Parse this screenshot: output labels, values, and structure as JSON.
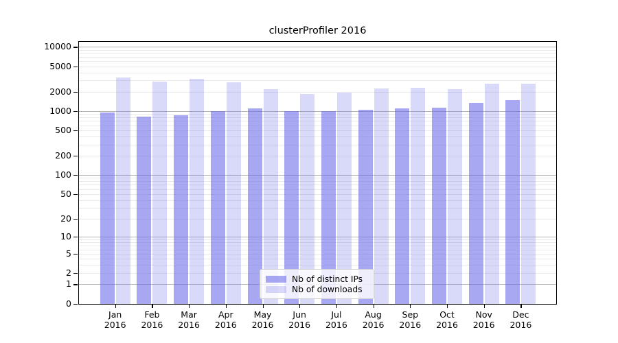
{
  "chart_data": {
    "type": "bar",
    "title": "clusterProfiler 2016",
    "months": [
      "Jan",
      "Feb",
      "Mar",
      "Apr",
      "May",
      "Jun",
      "Jul",
      "Aug",
      "Sep",
      "Oct",
      "Nov",
      "Dec"
    ],
    "year": "2016",
    "categories": [
      "Jan 2016",
      "Feb 2016",
      "Mar 2016",
      "Apr 2016",
      "May 2016",
      "Jun 2016",
      "Jul 2016",
      "Aug 2016",
      "Sep 2016",
      "Oct 2016",
      "Nov 2016",
      "Dec 2016"
    ],
    "series": [
      {
        "name": "Nb of distinct IPs",
        "color": "#6666e8",
        "alpha": 0.57,
        "values": [
          970,
          830,
          870,
          1010,
          1100,
          1020,
          1020,
          1070,
          1100,
          1140,
          1350,
          1490
        ]
      },
      {
        "name": "Nb of downloads",
        "color": "#6666e8",
        "alpha": 0.25,
        "values": [
          3400,
          2900,
          3200,
          2850,
          2200,
          1870,
          1950,
          2300,
          2310,
          2200,
          2730,
          2680
        ]
      }
    ],
    "xlabel": "",
    "ylabel": "",
    "yscale": "log1p",
    "yticks": [
      0,
      1,
      2,
      5,
      10,
      20,
      50,
      100,
      200,
      500,
      1000,
      2000,
      5000,
      10000
    ],
    "ylim": [
      0,
      12000
    ],
    "grid": {
      "major": true,
      "minor": true
    },
    "legend_position": "lower center",
    "colors": {
      "major_grid": "#b2b2b2",
      "minor_grid": "#e9e9e9",
      "spine": "#000000",
      "legend_border": "#cccccc"
    }
  }
}
